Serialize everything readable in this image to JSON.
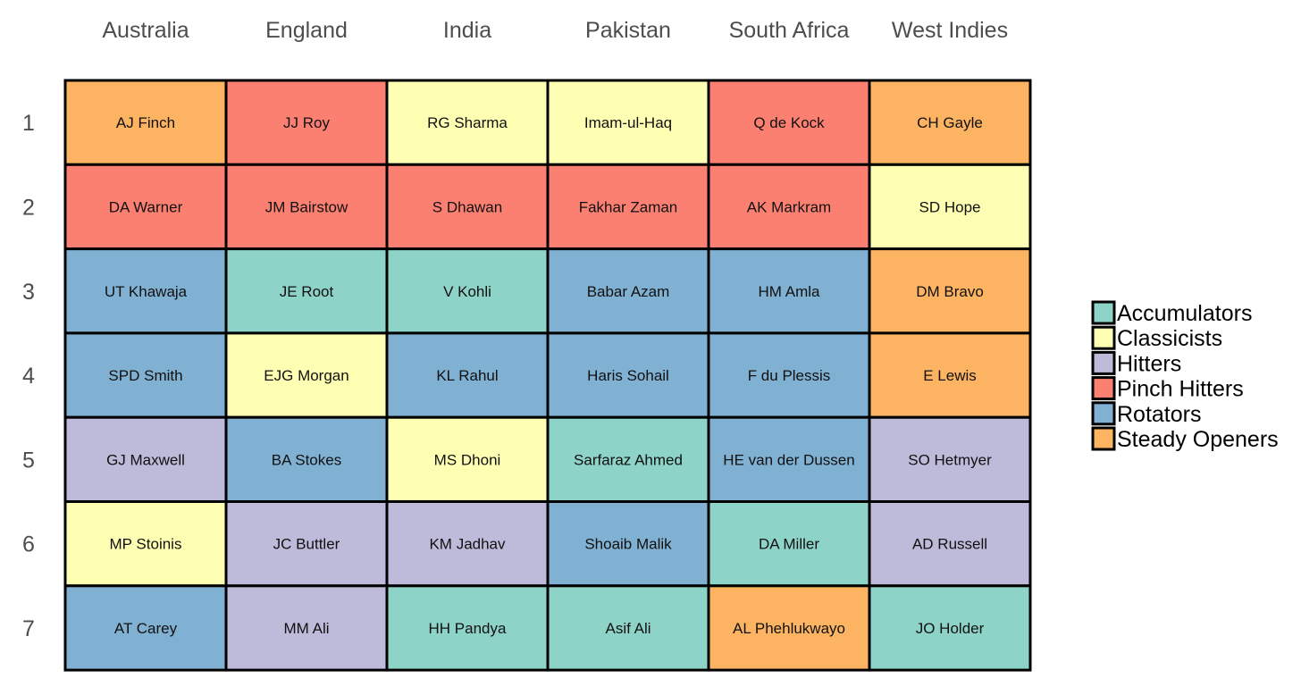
{
  "chart_data": {
    "type": "heatmap",
    "title": "",
    "xlabel": "",
    "ylabel": "",
    "columns": [
      "Australia",
      "England",
      "India",
      "Pakistan",
      "South Africa",
      "West Indies"
    ],
    "rows": [
      "1",
      "2",
      "3",
      "4",
      "5",
      "6",
      "7"
    ],
    "legend": {
      "placement": "right",
      "items": [
        {
          "name": "Accumulators",
          "color": "#8dd3c7"
        },
        {
          "name": "Classicists",
          "color": "#ffffb3"
        },
        {
          "name": "Hitters",
          "color": "#bebada"
        },
        {
          "name": "Pinch Hitters",
          "color": "#fb8072"
        },
        {
          "name": "Rotators",
          "color": "#80b1d3"
        },
        {
          "name": "Steady Openers",
          "color": "#fdb462"
        }
      ]
    },
    "cells": [
      [
        {
          "player": "AJ Finch",
          "category": "Steady Openers"
        },
        {
          "player": "JJ Roy",
          "category": "Pinch Hitters"
        },
        {
          "player": "RG Sharma",
          "category": "Classicists"
        },
        {
          "player": "Imam-ul-Haq",
          "category": "Classicists"
        },
        {
          "player": "Q de Kock",
          "category": "Pinch Hitters"
        },
        {
          "player": "CH Gayle",
          "category": "Steady Openers"
        }
      ],
      [
        {
          "player": "DA Warner",
          "category": "Pinch Hitters"
        },
        {
          "player": "JM Bairstow",
          "category": "Pinch Hitters"
        },
        {
          "player": "S Dhawan",
          "category": "Pinch Hitters"
        },
        {
          "player": "Fakhar Zaman",
          "category": "Pinch Hitters"
        },
        {
          "player": "AK Markram",
          "category": "Pinch Hitters"
        },
        {
          "player": "SD Hope",
          "category": "Classicists"
        }
      ],
      [
        {
          "player": "UT Khawaja",
          "category": "Rotators"
        },
        {
          "player": "JE Root",
          "category": "Accumulators"
        },
        {
          "player": "V Kohli",
          "category": "Accumulators"
        },
        {
          "player": "Babar Azam",
          "category": "Rotators"
        },
        {
          "player": "HM Amla",
          "category": "Rotators"
        },
        {
          "player": "DM Bravo",
          "category": "Steady Openers"
        }
      ],
      [
        {
          "player": "SPD Smith",
          "category": "Rotators"
        },
        {
          "player": "EJG Morgan",
          "category": "Classicists"
        },
        {
          "player": "KL Rahul",
          "category": "Rotators"
        },
        {
          "player": "Haris Sohail",
          "category": "Rotators"
        },
        {
          "player": "F du Plessis",
          "category": "Rotators"
        },
        {
          "player": "E Lewis",
          "category": "Steady Openers"
        }
      ],
      [
        {
          "player": "GJ Maxwell",
          "category": "Hitters"
        },
        {
          "player": "BA Stokes",
          "category": "Rotators"
        },
        {
          "player": "MS Dhoni",
          "category": "Classicists"
        },
        {
          "player": "Sarfaraz Ahmed",
          "category": "Accumulators"
        },
        {
          "player": "HE van der Dussen",
          "category": "Rotators"
        },
        {
          "player": "SO Hetmyer",
          "category": "Hitters"
        }
      ],
      [
        {
          "player": "MP Stoinis",
          "category": "Classicists"
        },
        {
          "player": "JC Buttler",
          "category": "Hitters"
        },
        {
          "player": "KM Jadhav",
          "category": "Hitters"
        },
        {
          "player": "Shoaib Malik",
          "category": "Rotators"
        },
        {
          "player": "DA Miller",
          "category": "Accumulators"
        },
        {
          "player": "AD Russell",
          "category": "Hitters"
        }
      ],
      [
        {
          "player": "AT Carey",
          "category": "Rotators"
        },
        {
          "player": "MM Ali",
          "category": "Hitters"
        },
        {
          "player": "HH Pandya",
          "category": "Accumulators"
        },
        {
          "player": "Asif Ali",
          "category": "Accumulators"
        },
        {
          "player": "AL Phehlukwayo",
          "category": "Steady Openers"
        },
        {
          "player": "JO Holder",
          "category": "Accumulators"
        }
      ]
    ]
  }
}
